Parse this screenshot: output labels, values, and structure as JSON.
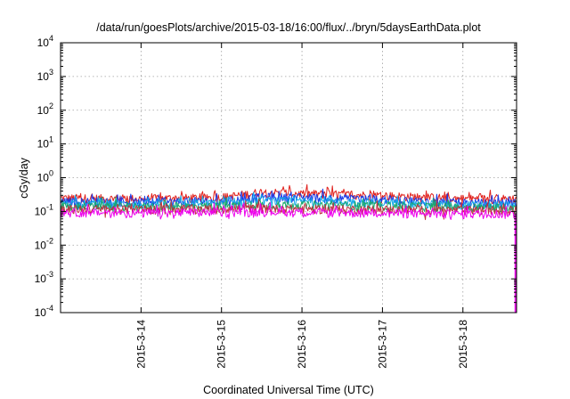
{
  "chart_data": {
    "type": "line",
    "title": "/data/run/goesPlots/archive/2015-03-18/16:00/flux/../bryn/5daysEarthData.plot",
    "xlabel": "Coordinated Universal Time (UTC)",
    "ylabel": "cGy/day",
    "y_scale": "log",
    "ylim": [
      0.0001,
      10000
    ],
    "y_ticks": [
      {
        "value": 0.0001,
        "base": "10",
        "exp": "-4"
      },
      {
        "value": 0.001,
        "base": "10",
        "exp": "-3"
      },
      {
        "value": 0.01,
        "base": "10",
        "exp": "-2"
      },
      {
        "value": 0.1,
        "base": "10",
        "exp": "-1"
      },
      {
        "value": 1,
        "base": "10",
        "exp": "0"
      },
      {
        "value": 10,
        "base": "10",
        "exp": "1"
      },
      {
        "value": 100,
        "base": "10",
        "exp": "2"
      },
      {
        "value": 1000,
        "base": "10",
        "exp": "3"
      },
      {
        "value": 10000,
        "base": "10",
        "exp": "4"
      }
    ],
    "xlim": [
      "2015-03-13T00:00",
      "2015-03-18T16:00"
    ],
    "x_ticks": [
      {
        "value": "2015-03-14T00:00",
        "label": "2015-3-14"
      },
      {
        "value": "2015-03-15T00:00",
        "label": "2015-3-15"
      },
      {
        "value": "2015-03-16T00:00",
        "label": "2015-3-16"
      },
      {
        "value": "2015-03-17T00:00",
        "label": "2015-3-17"
      },
      {
        "value": "2015-03-18T00:00",
        "label": "2015-3-18"
      }
    ],
    "grid": true,
    "legend": "none",
    "end_drop": {
      "x": "2015-03-18T16:00",
      "y": 0.0001
    },
    "series": [
      {
        "color": "#e0201c",
        "baseline": [
          [
            "2015-03-13T00:00",
            0.25
          ],
          [
            "2015-03-14T00:00",
            0.24
          ],
          [
            "2015-03-15T00:00",
            0.26
          ],
          [
            "2015-03-15T12:00",
            0.38
          ],
          [
            "2015-03-16T00:00",
            0.34
          ],
          [
            "2015-03-17T00:00",
            0.3
          ],
          [
            "2015-03-18T00:00",
            0.24
          ],
          [
            "2015-03-18T16:00",
            0.24
          ]
        ]
      },
      {
        "color": "#1a3be8",
        "baseline": [
          [
            "2015-03-13T00:00",
            0.2
          ],
          [
            "2015-03-14T00:00",
            0.19
          ],
          [
            "2015-03-15T00:00",
            0.2
          ],
          [
            "2015-03-15T12:00",
            0.27
          ],
          [
            "2015-03-16T00:00",
            0.26
          ],
          [
            "2015-03-17T00:00",
            0.23
          ],
          [
            "2015-03-18T00:00",
            0.18
          ],
          [
            "2015-03-18T16:00",
            0.18
          ]
        ]
      },
      {
        "color": "#13a8e8",
        "baseline": [
          [
            "2015-03-13T00:00",
            0.17
          ],
          [
            "2015-03-14T00:00",
            0.165
          ],
          [
            "2015-03-15T00:00",
            0.17
          ],
          [
            "2015-03-15T12:00",
            0.21
          ],
          [
            "2015-03-16T00:00",
            0.2
          ],
          [
            "2015-03-17T00:00",
            0.185
          ],
          [
            "2015-03-18T00:00",
            0.155
          ],
          [
            "2015-03-18T16:00",
            0.155
          ]
        ]
      },
      {
        "color": "#1aa86a",
        "baseline": [
          [
            "2015-03-13T00:00",
            0.145
          ],
          [
            "2015-03-14T00:00",
            0.14
          ],
          [
            "2015-03-15T00:00",
            0.145
          ],
          [
            "2015-03-15T12:00",
            0.16
          ],
          [
            "2015-03-16T00:00",
            0.155
          ],
          [
            "2015-03-17T00:00",
            0.15
          ],
          [
            "2015-03-18T00:00",
            0.135
          ],
          [
            "2015-03-18T16:00",
            0.135
          ]
        ]
      },
      {
        "color": "#c03040",
        "baseline": [
          [
            "2015-03-13T00:00",
            0.12
          ],
          [
            "2015-03-14T00:00",
            0.115
          ],
          [
            "2015-03-15T00:00",
            0.12
          ],
          [
            "2015-03-15T12:00",
            0.125
          ],
          [
            "2015-03-16T00:00",
            0.12
          ],
          [
            "2015-03-17T00:00",
            0.115
          ],
          [
            "2015-03-18T00:00",
            0.11
          ],
          [
            "2015-03-18T16:00",
            0.11
          ]
        ]
      },
      {
        "color": "#ee00ee",
        "baseline": [
          [
            "2015-03-13T00:00",
            0.095
          ],
          [
            "2015-03-14T00:00",
            0.09
          ],
          [
            "2015-03-15T00:00",
            0.095
          ],
          [
            "2015-03-15T12:00",
            0.1
          ],
          [
            "2015-03-16T00:00",
            0.095
          ],
          [
            "2015-03-17T00:00",
            0.09
          ],
          [
            "2015-03-18T00:00",
            0.085
          ],
          [
            "2015-03-18T16:00",
            0.085
          ]
        ]
      }
    ]
  }
}
